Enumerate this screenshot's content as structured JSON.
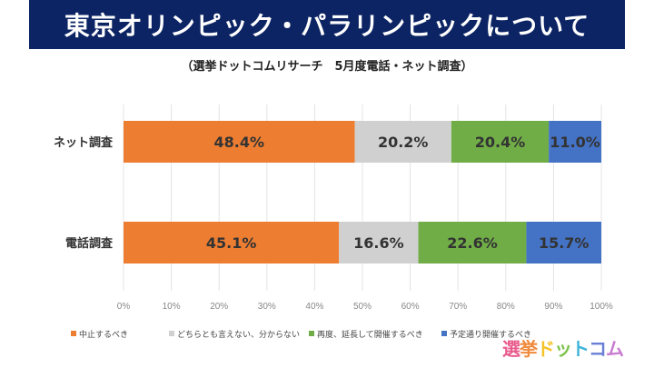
{
  "title": "東京オリンピック・パラリンピックについて",
  "subtitle": "（選挙ドットコムリサーチ　5月度電話・ネット調査）",
  "logo_text": "選挙ドットコム",
  "chart_data": {
    "type": "bar",
    "orientation": "horizontal-stacked-100",
    "categories": [
      "ネット調査",
      "電話調査"
    ],
    "series": [
      {
        "name": "中止するべき",
        "color": "#ed7d31",
        "values": [
          48.4,
          45.1
        ],
        "labels": [
          "48.4%",
          "45.1%"
        ]
      },
      {
        "name": "どちらとも言えない、分からない",
        "color": "#d0d0d0",
        "values": [
          20.2,
          16.6
        ],
        "labels": [
          "20.2%",
          "16.6%"
        ]
      },
      {
        "name": "再度、延長して開催するべき",
        "color": "#70ad47",
        "values": [
          20.4,
          22.6
        ],
        "labels": [
          "20.4%",
          "22.6%"
        ]
      },
      {
        "name": "予定通り開催するべき",
        "color": "#4472c4",
        "values": [
          11.0,
          15.7
        ],
        "labels": [
          "11.0%",
          "15.7%"
        ]
      }
    ],
    "xlim": [
      0,
      100
    ],
    "xticks": [
      "0%",
      "10%",
      "20%",
      "30%",
      "40%",
      "50%",
      "60%",
      "70%",
      "80%",
      "90%",
      "100%"
    ],
    "grid": true,
    "legend": "bottom"
  }
}
